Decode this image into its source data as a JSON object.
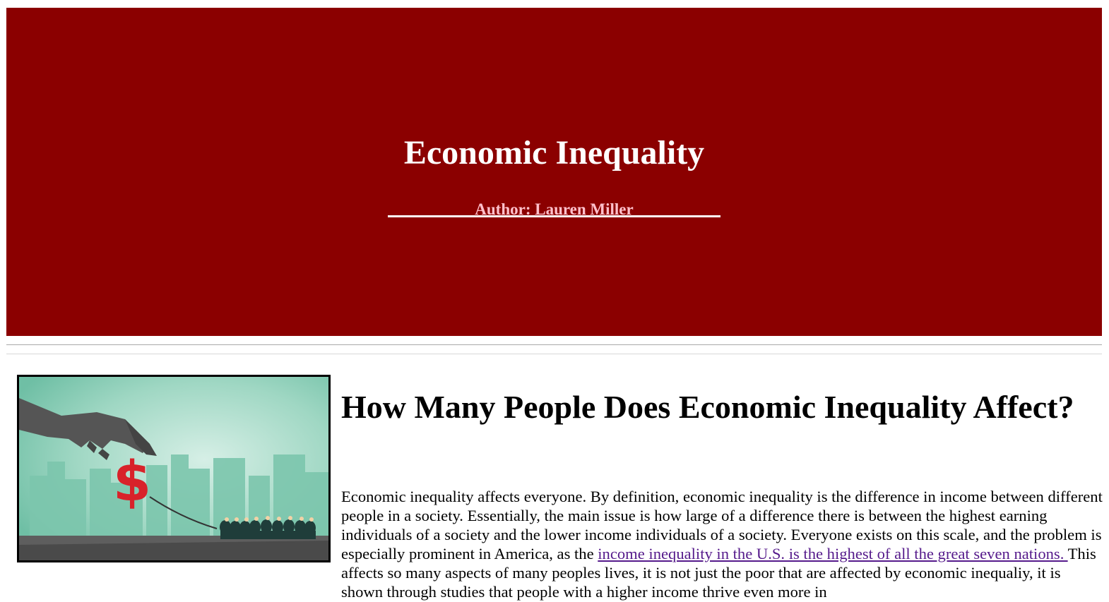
{
  "header": {
    "title": "Economic Inequality",
    "author": "Author: Lauren Miller",
    "background_color": "#8b0000",
    "author_color": "#ffc0cb"
  },
  "article": {
    "image_description_icon": "hand-pulling-dollar-sign-illustration",
    "heading": "How Many People Does Economic Inequality Affect?",
    "paragraph_before_link": "Economic inequality affects everyone. By definition, economic inequality is the difference in income between different people in a society. Essentially, the main issue is how large of a difference there is between the highest earning individuals of a society and the lower income individuals of a society. Everyone exists on this scale, and the problem is especially prominent in America, as the ",
    "link_text": "income inequality in the U.S. is the highest of all the great seven nations. ",
    "link_color": "#551a8b",
    "paragraph_after_link": "This affects so many aspects of many peoples lives, it is not just the poor that are affected by economic inequaliy, it is shown through studies that people with a higher income thrive even more in"
  }
}
